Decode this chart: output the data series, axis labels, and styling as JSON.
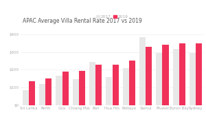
{
  "title": "APAC Average Villa Rental Rate 2017 vs 2019",
  "categories": [
    "Sri Lanka",
    "Perth",
    "Goa",
    "Chiang Mai",
    "Bali",
    "Hua Hin",
    "Pattaya",
    "Samui",
    "Phuket",
    "Byron Bay",
    "Sydney"
  ],
  "values_2017": [
    85,
    120,
    165,
    145,
    245,
    160,
    210,
    385,
    295,
    320,
    295
  ],
  "values_2019": [
    135,
    150,
    190,
    195,
    230,
    230,
    250,
    330,
    340,
    350,
    350
  ],
  "color_2017": "#e8e8e8",
  "color_2019": "#f0325a",
  "legend_2017": "2017",
  "legend_2019": "2019",
  "ylim": [
    0,
    450
  ],
  "yticks": [
    0,
    100,
    200,
    300,
    400
  ],
  "ytick_labels": [
    "$0",
    "$100",
    "$200",
    "$300",
    "$400"
  ],
  "background_color": "#ffffff",
  "title_fontsize": 5.5,
  "tick_fontsize": 4.0,
  "legend_fontsize": 4.2,
  "bar_width": 0.38
}
